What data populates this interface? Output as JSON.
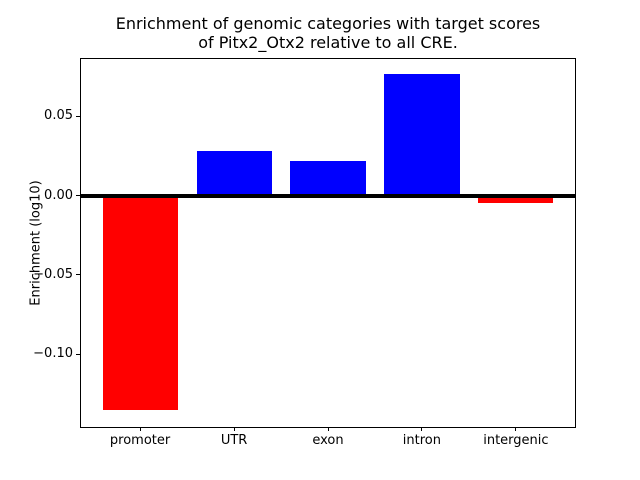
{
  "figure": {
    "background": "#ffffff",
    "text_color": "#000000"
  },
  "chart_data": {
    "type": "bar",
    "title": "Enrichment of genomic categories with target scores\nof Pitx2_Otx2 relative to all CRE.",
    "xlabel": "",
    "ylabel": "Enrichment (log10)",
    "categories": [
      "promoter",
      "UTR",
      "exon",
      "intron",
      "intergenic"
    ],
    "values": [
      -0.135,
      0.028,
      0.022,
      0.077,
      -0.005
    ],
    "bar_colors": [
      "#ff0000",
      "#0000ff",
      "#0000ff",
      "#0000ff",
      "#ff0000"
    ],
    "positive_color": "#0000ff",
    "negative_color": "#ff0000",
    "ylim": [
      -0.146,
      0.087
    ],
    "yticks": [
      0.05,
      0.0,
      -0.05,
      -0.1
    ],
    "ytick_labels": [
      "0.05",
      "0.00",
      "−0.05",
      "−0.10"
    ],
    "xlim": [
      -0.64,
      4.64
    ],
    "bar_width": 0.8,
    "zero_line": true,
    "grid": false,
    "legend": false
  }
}
